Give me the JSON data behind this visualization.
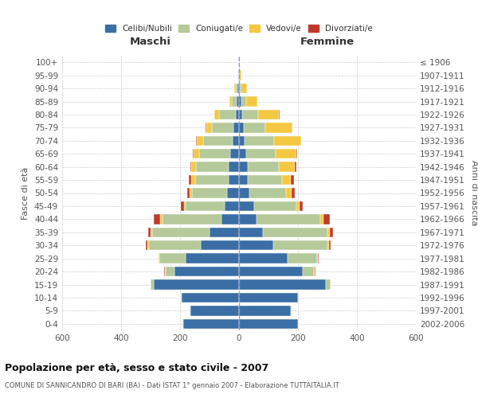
{
  "age_groups": [
    "0-4",
    "5-9",
    "10-14",
    "15-19",
    "20-24",
    "25-29",
    "30-34",
    "35-39",
    "40-44",
    "45-49",
    "50-54",
    "55-59",
    "60-64",
    "65-69",
    "70-74",
    "75-79",
    "80-84",
    "85-89",
    "90-94",
    "95-99",
    "100+"
  ],
  "birth_years": [
    "2002-2006",
    "1997-2001",
    "1992-1996",
    "1987-1991",
    "1982-1986",
    "1977-1981",
    "1972-1976",
    "1967-1971",
    "1962-1966",
    "1957-1961",
    "1952-1956",
    "1947-1951",
    "1942-1946",
    "1937-1941",
    "1932-1936",
    "1927-1931",
    "1922-1926",
    "1917-1921",
    "1912-1916",
    "1907-1911",
    "≤ 1906"
  ],
  "maschi": {
    "celibi": [
      190,
      165,
      195,
      290,
      220,
      180,
      130,
      100,
      60,
      50,
      40,
      35,
      35,
      30,
      22,
      18,
      12,
      8,
      5,
      3,
      2
    ],
    "coniugati": [
      2,
      2,
      2,
      10,
      30,
      90,
      175,
      195,
      200,
      130,
      120,
      115,
      110,
      105,
      100,
      75,
      55,
      15,
      5,
      1,
      0
    ],
    "vedovi": [
      0,
      0,
      0,
      0,
      2,
      2,
      5,
      5,
      8,
      6,
      8,
      12,
      18,
      20,
      22,
      18,
      18,
      10,
      5,
      0,
      0
    ],
    "divorziati": [
      0,
      0,
      0,
      0,
      2,
      2,
      5,
      8,
      20,
      10,
      8,
      8,
      3,
      2,
      2,
      2,
      0,
      0,
      0,
      0,
      0
    ]
  },
  "femmine": {
    "nubili": [
      200,
      175,
      200,
      295,
      215,
      165,
      115,
      80,
      60,
      50,
      35,
      30,
      30,
      25,
      20,
      15,
      10,
      8,
      4,
      2,
      1
    ],
    "coniugate": [
      3,
      3,
      3,
      15,
      40,
      100,
      185,
      220,
      215,
      145,
      125,
      115,
      105,
      100,
      100,
      75,
      55,
      15,
      3,
      0,
      0
    ],
    "vedove": [
      0,
      0,
      0,
      0,
      2,
      3,
      5,
      8,
      12,
      10,
      18,
      30,
      55,
      70,
      90,
      90,
      70,
      40,
      20,
      5,
      1
    ],
    "divorziate": [
      0,
      0,
      0,
      0,
      2,
      3,
      5,
      10,
      20,
      12,
      12,
      12,
      4,
      2,
      2,
      2,
      2,
      0,
      0,
      0,
      0
    ]
  },
  "colors": {
    "celibi": "#3a6ea5",
    "coniugati": "#b5c99a",
    "vedovi": "#f5c842",
    "divorziati": "#c0392b"
  },
  "xlim": 600,
  "title": "Popolazione per età, sesso e stato civile - 2007",
  "subtitle": "COMUNE DI SANNICANDRO DI BARI (BA) - Dati ISTAT 1° gennaio 2007 - Elaborazione TUTTAITALIA.IT",
  "ylabel_left": "Fasce di età",
  "ylabel_right": "Anni di nascita",
  "xlabel_left": "Maschi",
  "xlabel_right": "Femmine"
}
